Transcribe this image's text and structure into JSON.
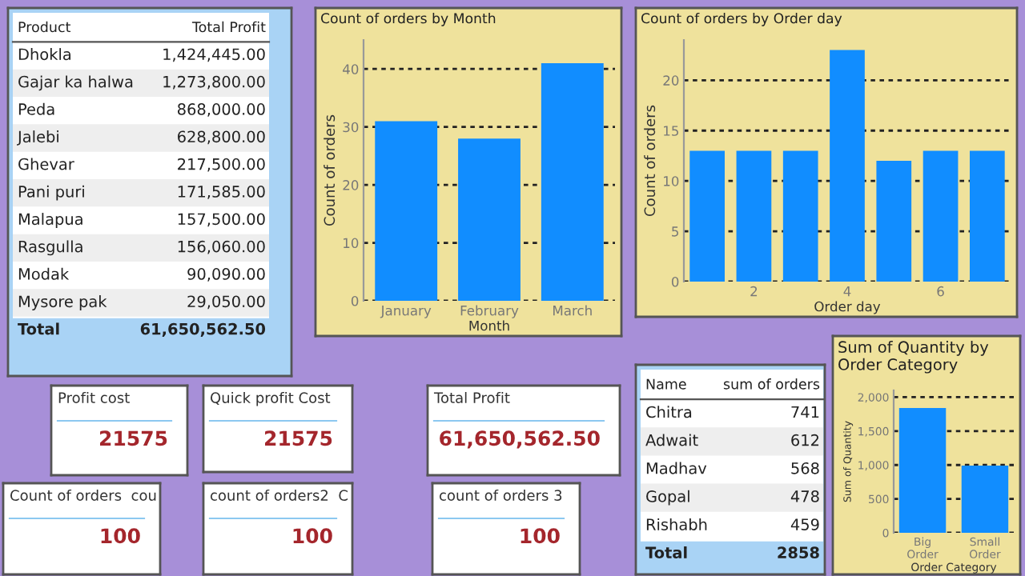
{
  "chart_data": [
    {
      "type": "other",
      "cell_labels": [
        [
          "Product",
          "Total Profit"
        ],
        [
          "Dhokla",
          "1,424,445.00"
        ],
        [
          "Gajar ka halwa",
          "1,273,800.00"
        ],
        [
          "Peda",
          "868,000.00"
        ],
        [
          "Jalebi",
          "628,800.00"
        ],
        [
          "Ghevar",
          "217,500.00"
        ],
        [
          "Pani puri",
          "171,585.00"
        ],
        [
          "Malapua",
          "157,500.00"
        ],
        [
          "Rasgulla",
          "156,060.00"
        ],
        [
          "Modak",
          "90,090.00"
        ],
        [
          "Mysore pak",
          "29,050.00"
        ],
        [
          "Total",
          "61,650,562.50"
        ]
      ]
    },
    {
      "type": "bar",
      "title": "Count of orders by Month",
      "xlabel": "Month",
      "ylabel": "Count of orders",
      "categories": [
        "January",
        "February",
        "March"
      ],
      "values": [
        31,
        28,
        41
      ],
      "color": "#118dff",
      "ylim": [
        0,
        45
      ],
      "yticks": [
        0,
        10,
        20,
        30,
        40
      ],
      "grid": "y"
    },
    {
      "type": "bar",
      "title": "Count of orders by Order day",
      "xlabel": "Order day",
      "ylabel": "Count of orders",
      "x": [
        1,
        2,
        3,
        4,
        5,
        6,
        7
      ],
      "values": [
        13,
        13,
        13,
        23,
        12,
        13,
        13
      ],
      "color": "#118dff",
      "xlim": [
        0.5,
        7.5
      ],
      "xticks": [
        2,
        4,
        6
      ],
      "ylim": [
        0,
        24
      ],
      "yticks": [
        0,
        5,
        10,
        15,
        20
      ],
      "grid": "y"
    },
    {
      "type": "other",
      "title": "Profit cost",
      "annotations": [
        "21575"
      ]
    },
    {
      "type": "other",
      "title": "Quick profit Cost",
      "annotations": [
        "21575"
      ]
    },
    {
      "type": "other",
      "title": "Total Profit",
      "annotations": [
        "61,650,562.50"
      ]
    },
    {
      "type": "other",
      "cell_labels": [
        [
          "Name",
          "sum of orders"
        ],
        [
          "Chitra",
          "741"
        ],
        [
          "Adwait",
          "612"
        ],
        [
          "Madhav",
          "568"
        ],
        [
          "Gopal",
          "478"
        ],
        [
          "Rishabh",
          "459"
        ],
        [
          "Total",
          "2858"
        ]
      ]
    },
    {
      "type": "bar",
      "title": "Sum of Quantity by Order Category",
      "xlabel": "Order Category",
      "ylabel": "Sum of Quantity",
      "categories": [
        "Big\nOrder",
        "Small\nOrder"
      ],
      "values": [
        1840,
        990
      ],
      "color": "#118dff",
      "ylim": [
        0,
        2100
      ],
      "yticks": [
        0,
        {
          "value": 500,
          "label": "500"
        },
        {
          "value": 1000,
          "label": "1,000"
        },
        {
          "value": 1500,
          "label": "1,500"
        },
        {
          "value": 2000,
          "label": "2,000"
        }
      ],
      "grid": "y"
    },
    {
      "type": "other",
      "title": "Count of orders  cou",
      "annotations": [
        "100"
      ]
    },
    {
      "type": "other",
      "title": "count of orders2  C",
      "annotations": [
        "100"
      ]
    },
    {
      "type": "other",
      "title": "count of orders 3",
      "annotations": [
        "100"
      ]
    }
  ]
}
